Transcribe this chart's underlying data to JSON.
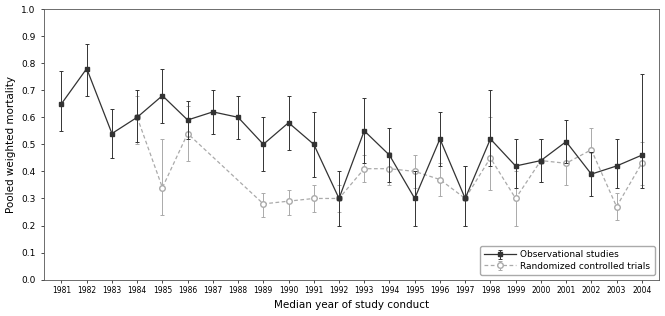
{
  "obs_years": [
    1981,
    1982,
    1983,
    1984,
    1985,
    1986,
    1987,
    1988,
    1989,
    1990,
    1991,
    1992,
    1993,
    1994,
    1995,
    1996,
    1997,
    1998,
    1999,
    2000,
    2001,
    2002,
    2003,
    2004
  ],
  "obs_values": [
    0.65,
    0.78,
    0.54,
    0.6,
    0.68,
    0.59,
    0.62,
    0.6,
    0.5,
    0.58,
    0.5,
    0.3,
    0.55,
    0.46,
    0.3,
    0.52,
    0.3,
    0.52,
    0.42,
    0.44,
    0.51,
    0.39,
    0.42,
    0.46
  ],
  "obs_err_low": [
    0.1,
    0.1,
    0.09,
    0.09,
    0.1,
    0.07,
    0.08,
    0.08,
    0.1,
    0.1,
    0.12,
    0.1,
    0.12,
    0.1,
    0.1,
    0.1,
    0.1,
    0.1,
    0.08,
    0.08,
    0.08,
    0.08,
    0.08,
    0.12
  ],
  "obs_err_high": [
    0.12,
    0.09,
    0.09,
    0.1,
    0.1,
    0.07,
    0.08,
    0.08,
    0.1,
    0.1,
    0.12,
    0.1,
    0.12,
    0.1,
    0.1,
    0.1,
    0.12,
    0.18,
    0.1,
    0.08,
    0.08,
    0.08,
    0.1,
    0.3
  ],
  "rct_years": [
    1984,
    1985,
    1986,
    1989,
    1990,
    1991,
    1992,
    1993,
    1994,
    1995,
    1996,
    1997,
    1998,
    1999,
    2000,
    2001,
    2002,
    2003,
    2004
  ],
  "rct_values": [
    0.6,
    0.34,
    0.54,
    0.28,
    0.29,
    0.3,
    0.3,
    0.41,
    0.41,
    0.4,
    0.37,
    0.3,
    0.45,
    0.3,
    0.44,
    0.43,
    0.48,
    0.27,
    0.43
  ],
  "rct_err_low": [
    0.1,
    0.1,
    0.1,
    0.05,
    0.05,
    0.05,
    0.05,
    0.05,
    0.06,
    0.06,
    0.06,
    0.1,
    0.12,
    0.1,
    0.08,
    0.08,
    0.08,
    0.05,
    0.08
  ],
  "rct_err_high": [
    0.08,
    0.18,
    0.1,
    0.04,
    0.04,
    0.05,
    0.05,
    0.05,
    0.06,
    0.06,
    0.06,
    0.12,
    0.15,
    0.1,
    0.08,
    0.08,
    0.08,
    0.05,
    0.08
  ],
  "xlabel": "Median year of study conduct",
  "ylabel": "Pooled weighted mortality",
  "ylim": [
    0.0,
    1.0
  ],
  "yticks": [
    0.0,
    0.1,
    0.2,
    0.3,
    0.4,
    0.5,
    0.6,
    0.7,
    0.8,
    0.9,
    1.0
  ],
  "legend_obs": "Observational studies",
  "legend_rct": "Randomized controlled trials",
  "obs_color": "#333333",
  "rct_color": "#aaaaaa",
  "background_color": "#ffffff"
}
